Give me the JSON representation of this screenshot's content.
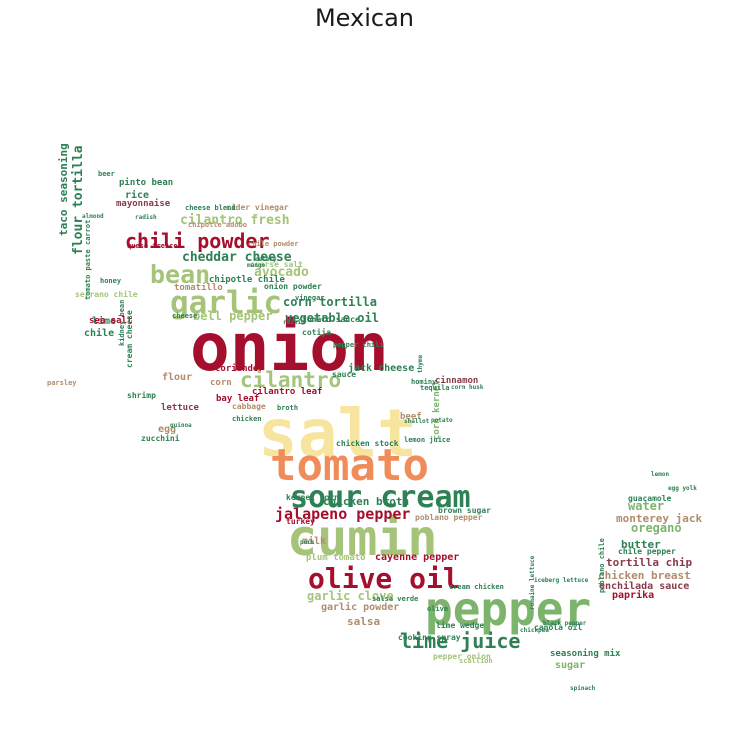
{
  "title": "Mexican",
  "colors": {
    "crimson": "#a50f2d",
    "orange": "#ef8c5a",
    "yellow": "#f7e49e",
    "sage": "#a5c47a",
    "green": "#2e8055",
    "mid_green": "#7cb46c",
    "tan": "#b08c6c",
    "mauve": "#8a3a4a"
  },
  "words": [
    {
      "text": "onion",
      "color": "crimson"
    },
    {
      "text": "salt",
      "color": "yellow"
    },
    {
      "text": "tomato",
      "color": "orange"
    },
    {
      "text": "cumin",
      "color": "sage"
    },
    {
      "text": "pepper",
      "color": "mid_green"
    },
    {
      "text": "sour cream",
      "color": "green"
    },
    {
      "text": "olive oil",
      "color": "crimson"
    },
    {
      "text": "garlic",
      "color": "sage"
    },
    {
      "text": "chili powder",
      "color": "crimson"
    },
    {
      "text": "bean",
      "color": "sage"
    },
    {
      "text": "lime juice",
      "color": "green"
    },
    {
      "text": "cilantro",
      "color": "sage"
    },
    {
      "text": "jalapeno pepper",
      "color": "crimson"
    },
    {
      "text": "cheddar cheese",
      "color": "green"
    },
    {
      "text": "cilantro fresh",
      "color": "sage"
    },
    {
      "text": "flour tortilla",
      "color": "green"
    },
    {
      "text": "taco seasoning",
      "color": "green"
    },
    {
      "text": "avocado",
      "color": "sage"
    },
    {
      "text": "corn tortilla",
      "color": "green"
    },
    {
      "text": "vegetable oil",
      "color": "green"
    },
    {
      "text": "bell pepper",
      "color": "sage"
    },
    {
      "text": "chicken broth",
      "color": "green"
    },
    {
      "text": "garlic clove",
      "color": "sage"
    },
    {
      "text": "garlic powder",
      "color": "tan"
    },
    {
      "text": "salsa",
      "color": "tan"
    },
    {
      "text": "water",
      "color": "mid_green"
    },
    {
      "text": "oregano",
      "color": "mid_green"
    },
    {
      "text": "monterey jack",
      "color": "tan"
    },
    {
      "text": "chicken breast",
      "color": "tan"
    },
    {
      "text": "tortilla chip",
      "color": "mauve"
    },
    {
      "text": "butter",
      "color": "green"
    },
    {
      "text": "jack cheese",
      "color": "green"
    },
    {
      "text": "cinnamon",
      "color": "mauve"
    },
    {
      "text": "beef",
      "color": "tan"
    },
    {
      "text": "corn kernel",
      "color": "mid_green"
    },
    {
      "text": "milk",
      "color": "tan"
    },
    {
      "text": "cayenne pepper",
      "color": "crimson"
    },
    {
      "text": "enchilada sauce",
      "color": "mauve"
    },
    {
      "text": "paprika",
      "color": "crimson"
    },
    {
      "text": "sugar",
      "color": "mid_green"
    },
    {
      "text": "seasoning mix",
      "color": "green"
    },
    {
      "text": "cooking spray",
      "color": "green"
    },
    {
      "text": "lime wedge",
      "color": "green"
    },
    {
      "text": "pepper onion",
      "color": "sage"
    },
    {
      "text": "canola oil",
      "color": "green"
    },
    {
      "text": "guacamole",
      "color": "green"
    },
    {
      "text": "chile pepper",
      "color": "green"
    },
    {
      "text": "brown sugar",
      "color": "green"
    },
    {
      "text": "poblano pepper",
      "color": "tan"
    },
    {
      "text": "chipotle chile",
      "color": "green"
    },
    {
      "text": "tomatillo",
      "color": "tan"
    },
    {
      "text": "onion powder",
      "color": "green"
    },
    {
      "text": "tomato sauce",
      "color": "green"
    },
    {
      "text": "rice",
      "color": "green"
    },
    {
      "text": "mayonnaise",
      "color": "mauve"
    },
    {
      "text": "pinto bean",
      "color": "green"
    },
    {
      "text": "lime",
      "color": "green"
    },
    {
      "text": "sea salt",
      "color": "crimson"
    },
    {
      "text": "chile",
      "color": "green"
    },
    {
      "text": "cream cheese",
      "color": "green"
    },
    {
      "text": "kidney bean",
      "color": "green"
    },
    {
      "text": "shrimp",
      "color": "green"
    },
    {
      "text": "zucchini",
      "color": "green"
    },
    {
      "text": "egg",
      "color": "tan"
    },
    {
      "text": "lettuce",
      "color": "mauve"
    },
    {
      "text": "flour",
      "color": "tan"
    },
    {
      "text": "corn",
      "color": "tan"
    },
    {
      "text": "coriander",
      "color": "crimson"
    },
    {
      "text": "bay leaf",
      "color": "crimson"
    },
    {
      "text": "cilantro leaf",
      "color": "crimson"
    },
    {
      "text": "hominy",
      "color": "green"
    },
    {
      "text": "lemon juice",
      "color": "green"
    },
    {
      "text": "chicken stock",
      "color": "green"
    },
    {
      "text": "kernel corn",
      "color": "green"
    },
    {
      "text": "turkey",
      "color": "crimson"
    },
    {
      "text": "plum tomato",
      "color": "sage"
    },
    {
      "text": "salsa verde",
      "color": "green"
    },
    {
      "text": "scallion",
      "color": "sage"
    },
    {
      "text": "cider vinegar",
      "color": "tan"
    },
    {
      "text": "cheese blend",
      "color": "green"
    },
    {
      "text": "chipotle adobo",
      "color": "tan"
    },
    {
      "text": "queso fresco",
      "color": "crimson"
    },
    {
      "text": "chile powder",
      "color": "tan"
    },
    {
      "text": "coarse salt",
      "color": "sage"
    },
    {
      "text": "cotija",
      "color": "green"
    },
    {
      "text": "sauce",
      "color": "green"
    },
    {
      "text": "cabbage",
      "color": "tan"
    },
    {
      "text": "chicken",
      "color": "green"
    },
    {
      "text": "broth",
      "color": "green"
    },
    {
      "text": "vinegar",
      "color": "green"
    },
    {
      "text": "honey",
      "color": "green"
    },
    {
      "text": "serrano chile",
      "color": "sage"
    },
    {
      "text": "tomato paste",
      "color": "green"
    },
    {
      "text": "carrot",
      "color": "green"
    },
    {
      "text": "parsley",
      "color": "tan"
    },
    {
      "text": "beer",
      "color": "green"
    },
    {
      "text": "cheese",
      "color": "green"
    },
    {
      "text": "pepper chili",
      "color": "green"
    },
    {
      "text": "tequila",
      "color": "green"
    },
    {
      "text": "cream chicken",
      "color": "green"
    },
    {
      "text": "olive",
      "color": "green"
    },
    {
      "text": "romaine lettuce",
      "color": "green"
    },
    {
      "text": "poblano chile",
      "color": "green"
    },
    {
      "text": "iceberg lettuce",
      "color": "green"
    },
    {
      "text": "chickpea",
      "color": "green"
    },
    {
      "text": "black pepper",
      "color": "green"
    },
    {
      "text": "pork",
      "color": "green"
    },
    {
      "text": "celery",
      "color": "green"
    },
    {
      "text": "raisin",
      "color": "green"
    },
    {
      "text": "shallot",
      "color": "green"
    },
    {
      "text": "potato",
      "color": "green"
    },
    {
      "text": "thyme",
      "color": "green"
    },
    {
      "text": "mango",
      "color": "green"
    },
    {
      "text": "radish",
      "color": "green"
    },
    {
      "text": "quinoa",
      "color": "green"
    },
    {
      "text": "almond",
      "color": "green"
    },
    {
      "text": "corn husk",
      "color": "green"
    },
    {
      "text": "lemon",
      "color": "green"
    },
    {
      "text": "egg yolk",
      "color": "green"
    },
    {
      "text": "spinach",
      "color": "green"
    }
  ]
}
